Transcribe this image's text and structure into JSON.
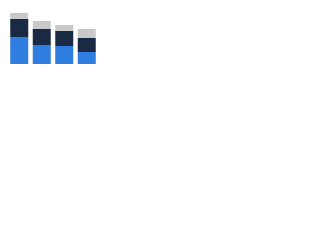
{
  "chart_data": {
    "type": "stacked-bar",
    "categories": [
      null,
      null,
      null,
      null
    ],
    "series": [
      {
        "color": "#2f7ddf",
        "values": [
          27,
          19,
          18,
          12
        ]
      },
      {
        "color": "#1b2a44",
        "values": [
          18,
          16,
          15,
          14
        ]
      },
      {
        "color": "#c9c9c9",
        "values": [
          6,
          8,
          6,
          9
        ]
      }
    ],
    "ylim": [
      0,
      60
    ]
  }
}
